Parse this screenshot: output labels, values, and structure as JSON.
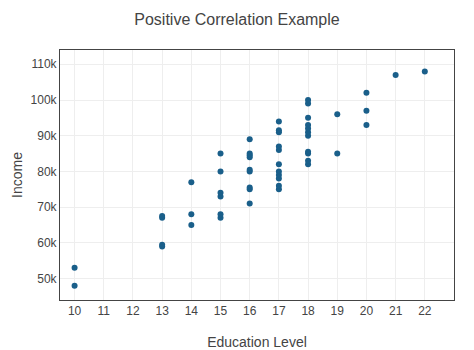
{
  "chart_data": {
    "type": "scatter",
    "title": "Positive Correlation Example",
    "xlabel": "Education Level",
    "ylabel": "Income",
    "color": "#1a5f8a",
    "x": [
      10,
      10,
      13,
      13,
      13,
      13,
      14,
      14,
      14,
      15,
      15,
      15,
      15,
      15,
      15,
      16,
      16,
      16,
      16,
      16,
      16,
      16,
      16,
      16,
      17,
      17,
      17,
      17,
      17,
      17,
      17,
      17,
      17,
      17,
      17,
      18,
      18,
      18,
      18,
      18,
      18,
      18,
      18,
      18,
      18,
      18,
      19,
      19,
      20,
      20,
      20,
      21,
      22
    ],
    "values": [
      53000,
      48000,
      59000,
      59500,
      67000,
      67500,
      65000,
      68000,
      77000,
      67000,
      68000,
      73000,
      74000,
      80000,
      85000,
      71000,
      75000,
      75500,
      80000,
      80500,
      84000,
      84500,
      85000,
      89000,
      75000,
      76000,
      78000,
      79000,
      80000,
      82000,
      86000,
      87000,
      91000,
      91500,
      94000,
      82000,
      83000,
      85000,
      85500,
      90000,
      91000,
      92000,
      93000,
      95000,
      99000,
      100000,
      85000,
      96000,
      93000,
      97000,
      102000,
      107000,
      108000
    ],
    "xlim": [
      9.5,
      23.0
    ],
    "ylim": [
      44000,
      114000
    ],
    "xticks": [
      10,
      11,
      12,
      13,
      14,
      15,
      16,
      17,
      18,
      19,
      20,
      21,
      22
    ],
    "yticks": [
      {
        "value": 50000,
        "label": "50k"
      },
      {
        "value": 60000,
        "label": "60k"
      },
      {
        "value": 70000,
        "label": "70k"
      },
      {
        "value": 80000,
        "label": "80k"
      },
      {
        "value": 90000,
        "label": "90k"
      },
      {
        "value": 100000,
        "label": "100k"
      },
      {
        "value": 110000,
        "label": "110k"
      }
    ],
    "grid": true
  }
}
